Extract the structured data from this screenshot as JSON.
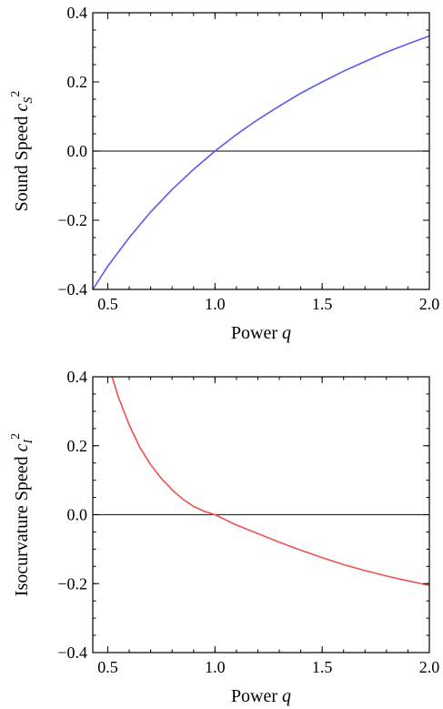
{
  "chart_data": [
    {
      "type": "line",
      "title": "",
      "xlabel": "Power",
      "xlabel_var": "q",
      "ylabel": "Sound Speed",
      "ylabel_var": "c",
      "ylabel_sub": "S",
      "ylabel_sup": "2",
      "xlim": [
        0.43,
        2.0
      ],
      "ylim": [
        -0.4,
        0.4
      ],
      "xticks": [
        0.5,
        1.0,
        1.5,
        2.0
      ],
      "xtick_labels": [
        "0.5",
        "1.0",
        "1.5",
        "2.0"
      ],
      "yticks": [
        -0.4,
        -0.2,
        0.0,
        0.2,
        0.4
      ],
      "ytick_labels": [
        "−0.4",
        "−0.2",
        "0.0",
        "0.2",
        "0.4"
      ],
      "reference_line_y": 0.0,
      "grid": false,
      "series": [
        {
          "color": "#5a5af0",
          "x": [
            0.43,
            0.5,
            0.6,
            0.7,
            0.8,
            0.9,
            1.0,
            1.1,
            1.2,
            1.3,
            1.4,
            1.5,
            1.6,
            1.7,
            1.8,
            1.9,
            2.0
          ],
          "y": [
            -0.4,
            -0.333,
            -0.25,
            -0.176,
            -0.111,
            -0.053,
            0.0,
            0.048,
            0.091,
            0.13,
            0.167,
            0.2,
            0.231,
            0.259,
            0.286,
            0.31,
            0.333
          ]
        }
      ]
    },
    {
      "type": "line",
      "title": "",
      "xlabel": "Power",
      "xlabel_var": "q",
      "ylabel": "Isocurvature Speed",
      "ylabel_var": "c",
      "ylabel_sub": "I",
      "ylabel_sup": "2",
      "xlim": [
        0.43,
        2.0
      ],
      "ylim": [
        -0.4,
        0.4
      ],
      "xticks": [
        0.5,
        1.0,
        1.5,
        2.0
      ],
      "xtick_labels": [
        "0.5",
        "1.0",
        "1.5",
        "2.0"
      ],
      "yticks": [
        -0.4,
        -0.2,
        0.0,
        0.2,
        0.4
      ],
      "ytick_labels": [
        "−0.4",
        "−0.2",
        "0.0",
        "0.2",
        "0.4"
      ],
      "reference_line_y": 0.0,
      "grid": false,
      "series": [
        {
          "color": "#f05050",
          "x": [
            0.52,
            0.55,
            0.6,
            0.65,
            0.7,
            0.75,
            0.8,
            0.85,
            0.9,
            0.95,
            1.0,
            1.1,
            1.2,
            1.3,
            1.4,
            1.5,
            1.6,
            1.7,
            1.8,
            1.9,
            2.0
          ],
          "y": [
            0.4,
            0.34,
            0.26,
            0.195,
            0.145,
            0.105,
            0.072,
            0.045,
            0.024,
            0.01,
            0.0,
            -0.03,
            -0.055,
            -0.08,
            -0.103,
            -0.125,
            -0.145,
            -0.162,
            -0.178,
            -0.192,
            -0.205
          ]
        }
      ]
    }
  ]
}
